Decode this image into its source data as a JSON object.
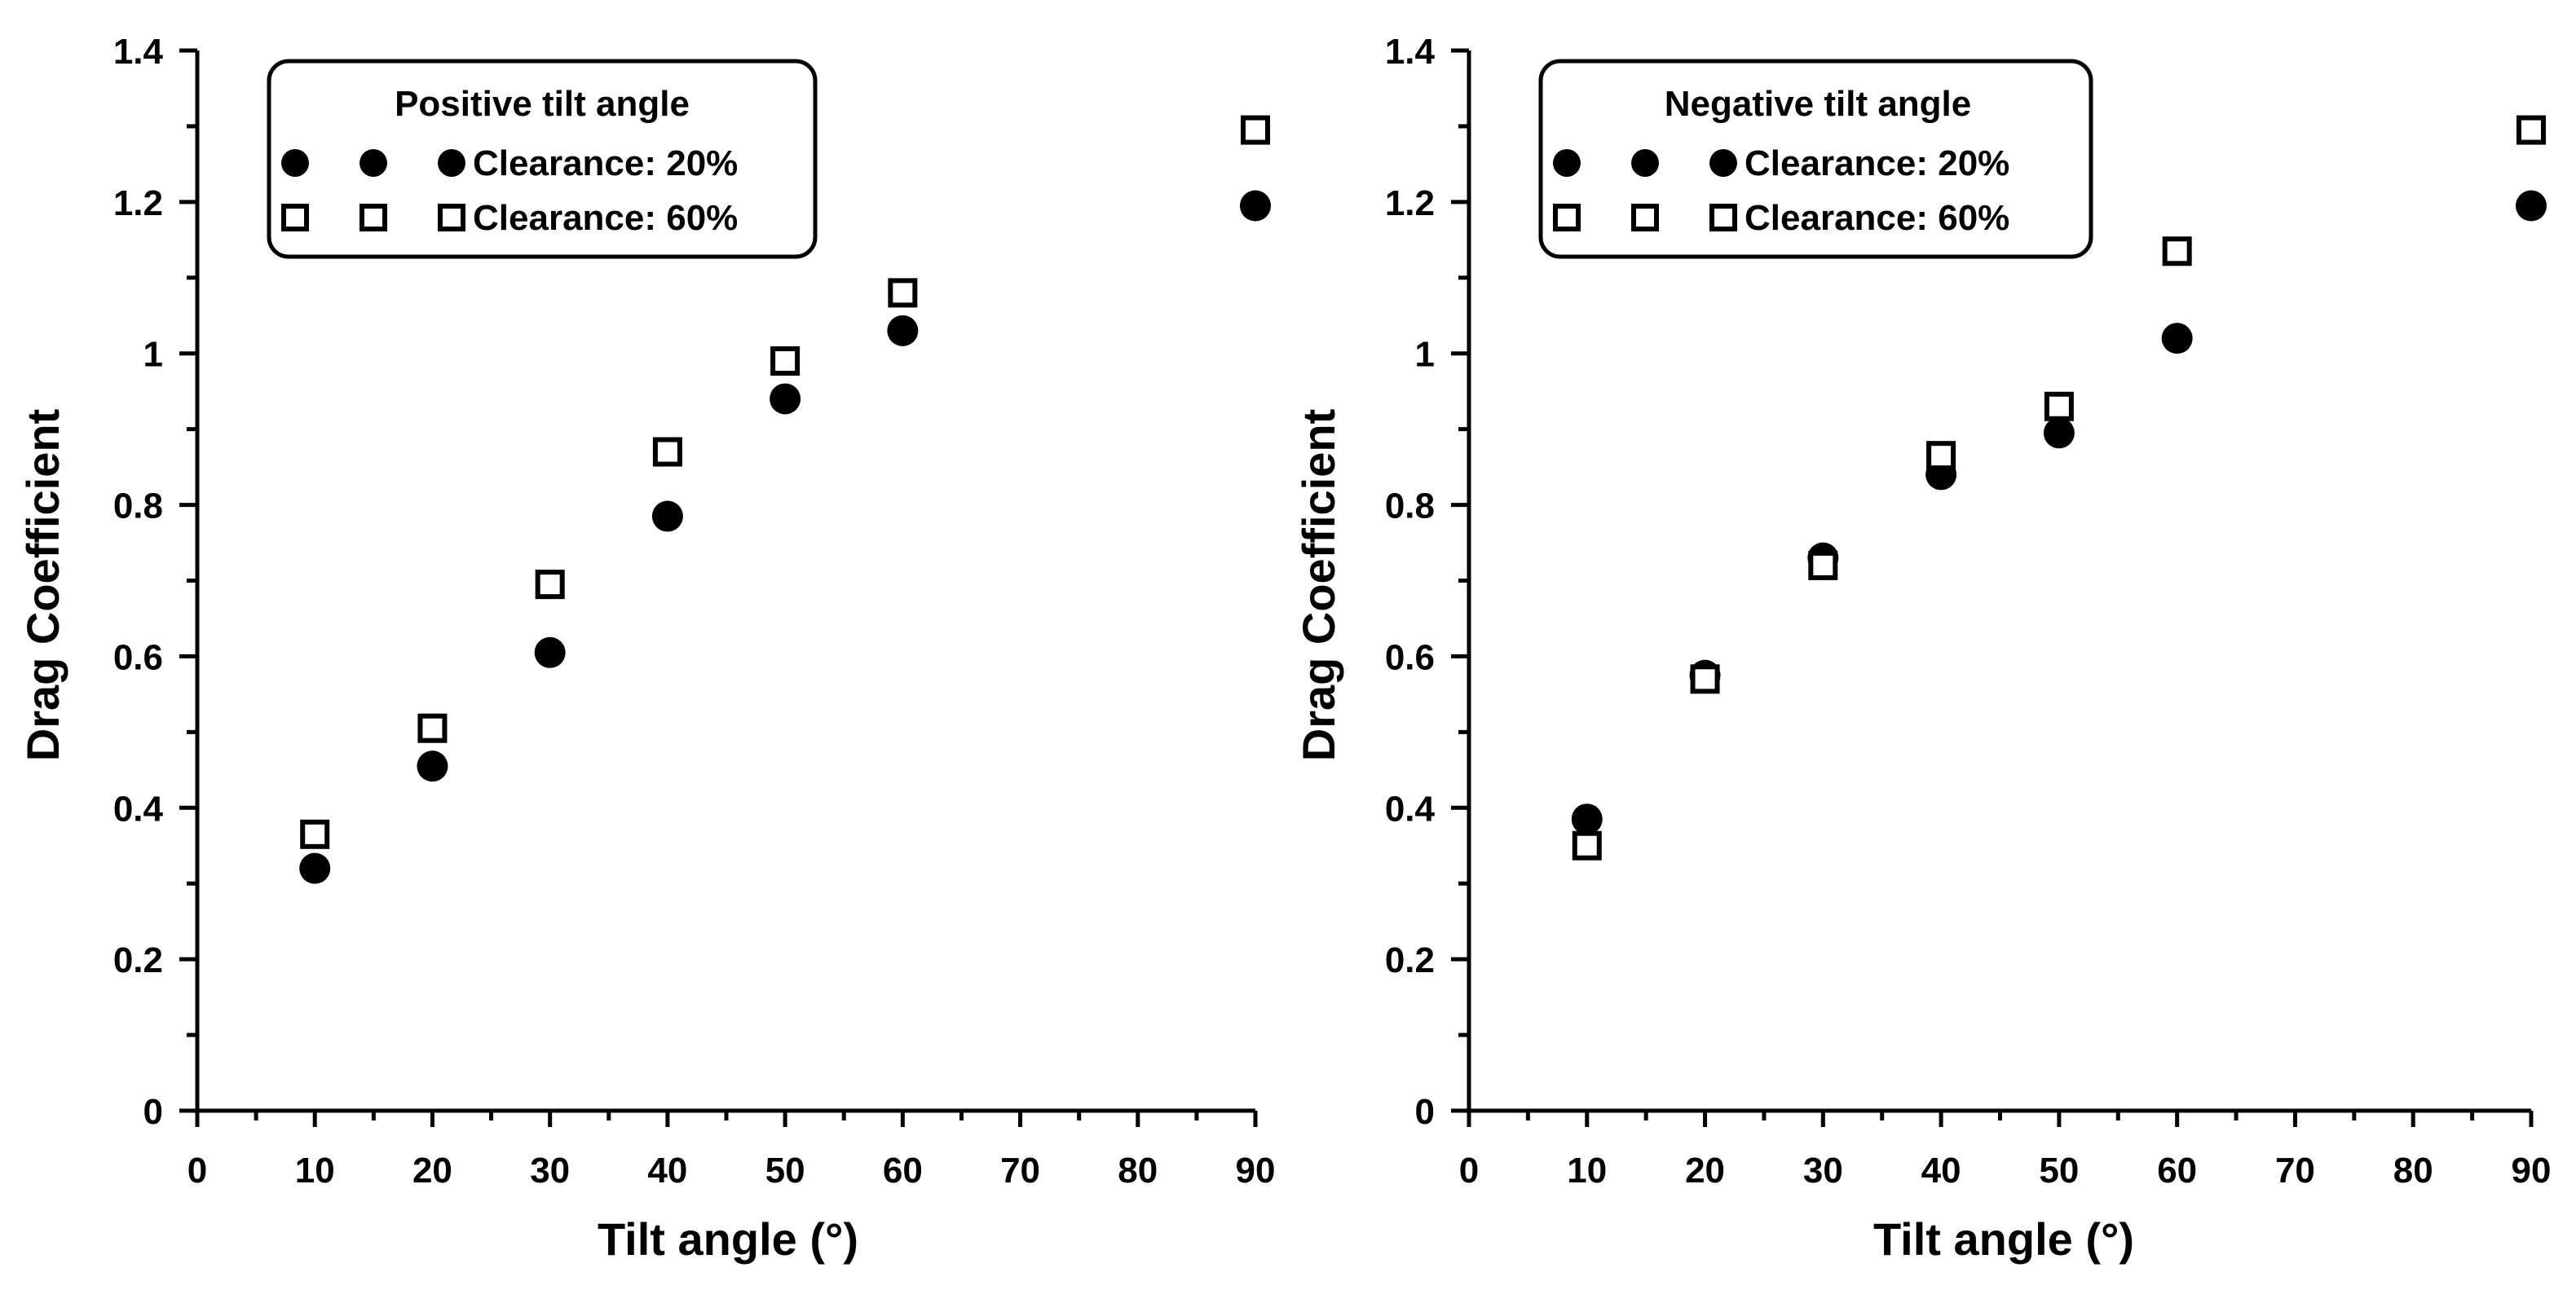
{
  "colors": {
    "ink": "#000000",
    "paper": "#ffffff"
  },
  "chart_data": [
    {
      "type": "scatter",
      "title": "",
      "xlabel": "Tilt angle (°)",
      "ylabel": "Drag Coefficient",
      "xlim": [
        0,
        90
      ],
      "ylim": [
        0,
        1.4
      ],
      "xticks": [
        "0",
        "10",
        "20",
        "30",
        "40",
        "50",
        "60",
        "70",
        "80",
        "90"
      ],
      "yticks": [
        "0",
        "0.2",
        "0.4",
        "0.6",
        "0.8",
        "1",
        "1.2",
        "1.4"
      ],
      "grid": false,
      "legend": {
        "title": "Positive tilt angle",
        "placement": "top-left",
        "entries": [
          "Clearance: 20%",
          "Clearance: 60%"
        ]
      },
      "series": [
        {
          "name": "Clearance: 20%",
          "marker": "filled-circle",
          "x": [
            10,
            20,
            30,
            40,
            50,
            60,
            90
          ],
          "y": [
            0.32,
            0.455,
            0.605,
            0.785,
            0.94,
            1.03,
            1.195
          ]
        },
        {
          "name": "Clearance: 60%",
          "marker": "open-square",
          "x": [
            10,
            20,
            30,
            40,
            50,
            60,
            90
          ],
          "y": [
            0.365,
            0.505,
            0.695,
            0.87,
            0.99,
            1.08,
            1.295
          ]
        }
      ]
    },
    {
      "type": "scatter",
      "title": "",
      "xlabel": "Tilt angle (°)",
      "ylabel": "Drag Coefficient",
      "xlim": [
        0,
        90
      ],
      "ylim": [
        0,
        1.4
      ],
      "xticks": [
        "0",
        "10",
        "20",
        "30",
        "40",
        "50",
        "60",
        "70",
        "80",
        "90"
      ],
      "yticks": [
        "0",
        "0.2",
        "0.4",
        "0.6",
        "0.8",
        "1",
        "1.2",
        "1.4"
      ],
      "grid": false,
      "legend": {
        "title": "Negative tilt angle",
        "placement": "top-left",
        "entries": [
          "Clearance: 20%",
          "Clearance: 60%"
        ]
      },
      "series": [
        {
          "name": "Clearance: 20%",
          "marker": "filled-circle",
          "x": [
            10,
            20,
            30,
            40,
            50,
            60,
            90
          ],
          "y": [
            0.385,
            0.575,
            0.73,
            0.84,
            0.895,
            1.02,
            1.195
          ]
        },
        {
          "name": "Clearance: 60%",
          "marker": "open-square",
          "x": [
            10,
            20,
            30,
            40,
            50,
            60,
            90
          ],
          "y": [
            0.35,
            0.57,
            0.72,
            0.865,
            0.93,
            1.135,
            1.295
          ]
        }
      ]
    }
  ]
}
